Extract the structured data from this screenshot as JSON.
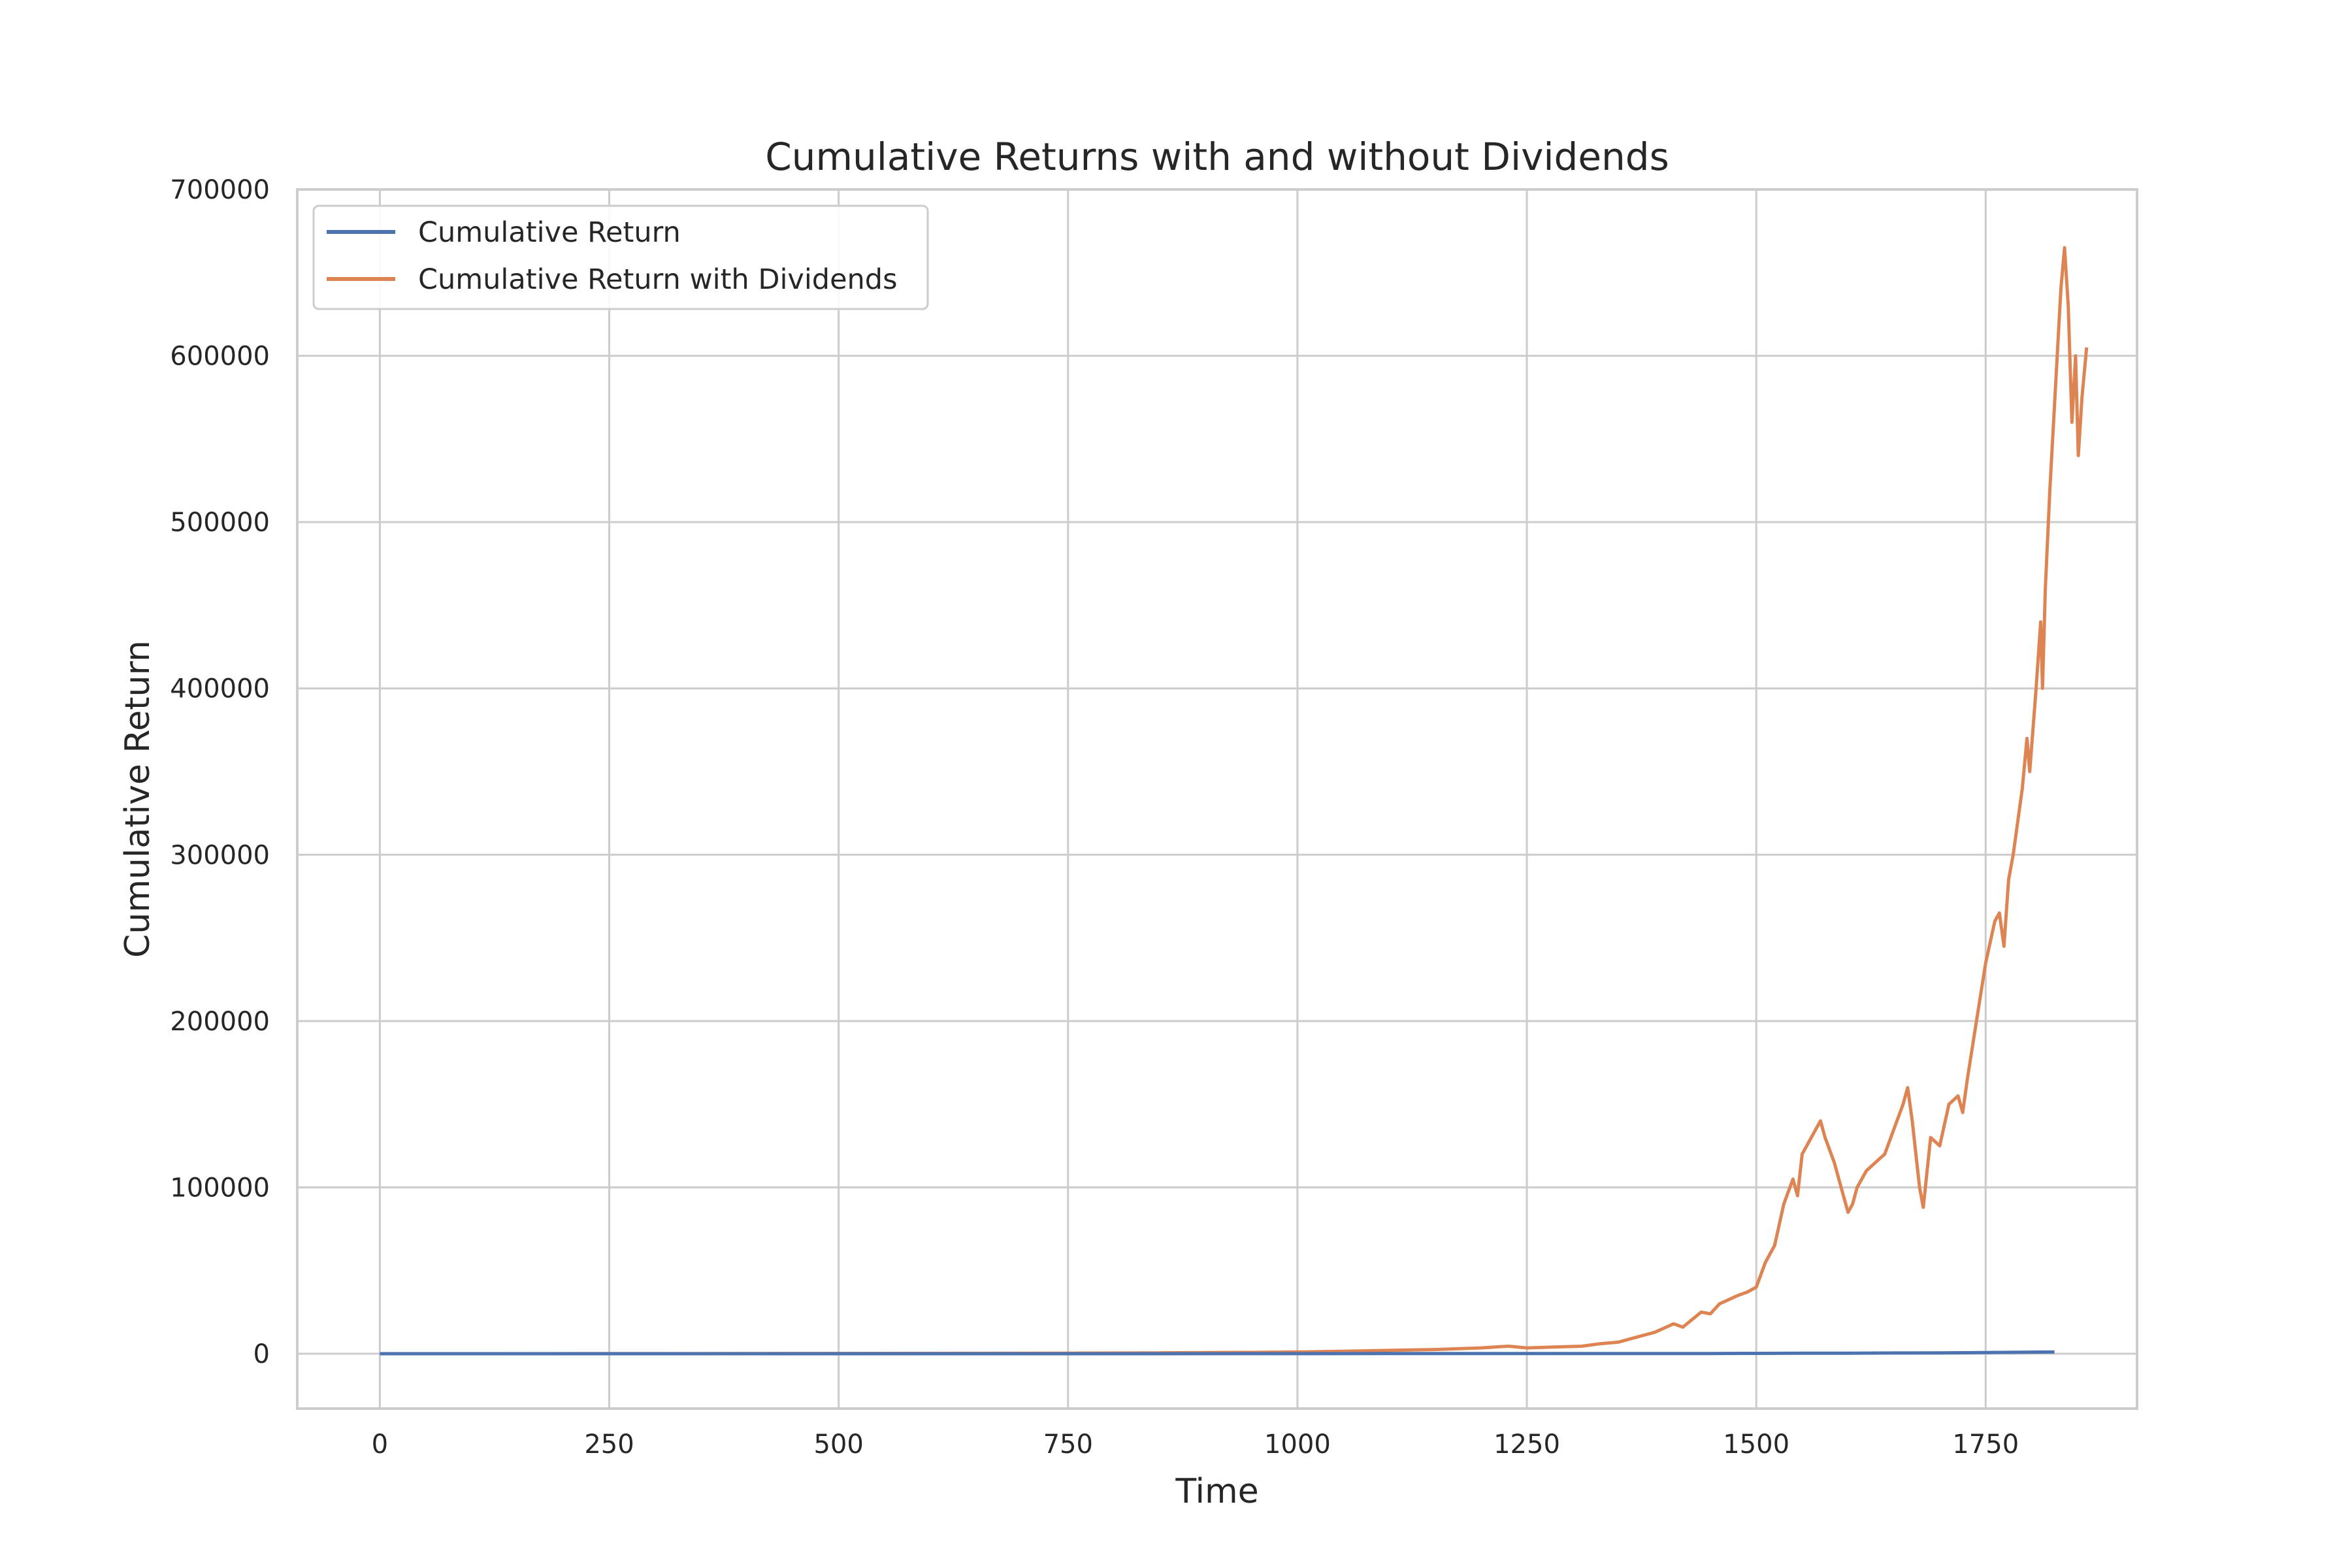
{
  "colors": {
    "background": "#ffffff",
    "grid": "#cccccc",
    "text": "#262626",
    "series_blue": "#4c72b0",
    "series_orange": "#dd8452"
  },
  "chart_data": {
    "type": "line",
    "title": "Cumulative Returns with and without Dividends",
    "xlabel": "Time",
    "ylabel": "Cumulative Return",
    "xlim": [
      -90,
      1915
    ],
    "ylim": [
      -33000,
      700000
    ],
    "xticks": [
      0,
      250,
      500,
      750,
      1000,
      1250,
      1500,
      1750
    ],
    "xtick_labels": [
      "0",
      "250",
      "500",
      "750",
      "1000",
      "1250",
      "1500",
      "1750"
    ],
    "yticks": [
      0,
      100000,
      200000,
      300000,
      400000,
      500000,
      600000,
      700000
    ],
    "ytick_labels": [
      "0",
      "100000",
      "200000",
      "300000",
      "400000",
      "500000",
      "600000",
      "700000"
    ],
    "grid": true,
    "legend_position": "upper-left",
    "series": [
      {
        "name": "Cumulative Return",
        "color": "#4c72b0",
        "points": [
          [
            0,
            0
          ],
          [
            250,
            1
          ],
          [
            500,
            3
          ],
          [
            750,
            10
          ],
          [
            1000,
            40
          ],
          [
            1100,
            60
          ],
          [
            1200,
            80
          ],
          [
            1250,
            100
          ],
          [
            1300,
            110
          ],
          [
            1400,
            120
          ],
          [
            1450,
            130
          ],
          [
            1500,
            200
          ],
          [
            1550,
            300
          ],
          [
            1600,
            320
          ],
          [
            1650,
            420
          ],
          [
            1700,
            500
          ],
          [
            1750,
            700
          ],
          [
            1800,
            950
          ],
          [
            1825,
            1000
          ]
        ]
      },
      {
        "name": "Cumulative Return with Dividends",
        "color": "#dd8452",
        "points": [
          [
            0,
            0
          ],
          [
            250,
            50
          ],
          [
            500,
            150
          ],
          [
            750,
            300
          ],
          [
            850,
            500
          ],
          [
            950,
            800
          ],
          [
            1000,
            1000
          ],
          [
            1050,
            1500
          ],
          [
            1100,
            2000
          ],
          [
            1150,
            2500
          ],
          [
            1200,
            3500
          ],
          [
            1230,
            4500
          ],
          [
            1250,
            3500
          ],
          [
            1280,
            4000
          ],
          [
            1310,
            4500
          ],
          [
            1330,
            6000
          ],
          [
            1350,
            7000
          ],
          [
            1370,
            10000
          ],
          [
            1390,
            13000
          ],
          [
            1410,
            18000
          ],
          [
            1420,
            16000
          ],
          [
            1440,
            25000
          ],
          [
            1450,
            24000
          ],
          [
            1460,
            30000
          ],
          [
            1480,
            35000
          ],
          [
            1490,
            37000
          ],
          [
            1500,
            40000
          ],
          [
            1510,
            55000
          ],
          [
            1520,
            65000
          ],
          [
            1530,
            90000
          ],
          [
            1540,
            105000
          ],
          [
            1545,
            95000
          ],
          [
            1550,
            120000
          ],
          [
            1560,
            130000
          ],
          [
            1570,
            140000
          ],
          [
            1575,
            130000
          ],
          [
            1585,
            115000
          ],
          [
            1595,
            95000
          ],
          [
            1600,
            85000
          ],
          [
            1605,
            90000
          ],
          [
            1610,
            100000
          ],
          [
            1620,
            110000
          ],
          [
            1630,
            115000
          ],
          [
            1640,
            120000
          ],
          [
            1650,
            135000
          ],
          [
            1660,
            150000
          ],
          [
            1665,
            160000
          ],
          [
            1670,
            140000
          ],
          [
            1678,
            100000
          ],
          [
            1682,
            88000
          ],
          [
            1690,
            130000
          ],
          [
            1700,
            125000
          ],
          [
            1710,
            150000
          ],
          [
            1720,
            155000
          ],
          [
            1725,
            145000
          ],
          [
            1730,
            165000
          ],
          [
            1740,
            200000
          ],
          [
            1750,
            235000
          ],
          [
            1760,
            260000
          ],
          [
            1765,
            265000
          ],
          [
            1770,
            245000
          ],
          [
            1775,
            285000
          ],
          [
            1780,
            300000
          ],
          [
            1790,
            340000
          ],
          [
            1795,
            370000
          ],
          [
            1798,
            350000
          ],
          [
            1805,
            400000
          ],
          [
            1810,
            440000
          ],
          [
            1812,
            400000
          ],
          [
            1815,
            460000
          ],
          [
            1820,
            520000
          ],
          [
            1828,
            600000
          ],
          [
            1832,
            640000
          ],
          [
            1836,
            665000
          ],
          [
            1840,
            630000
          ],
          [
            1844,
            560000
          ],
          [
            1848,
            600000
          ],
          [
            1851,
            540000
          ],
          [
            1855,
            575000
          ],
          [
            1860,
            605000
          ]
        ]
      }
    ]
  }
}
